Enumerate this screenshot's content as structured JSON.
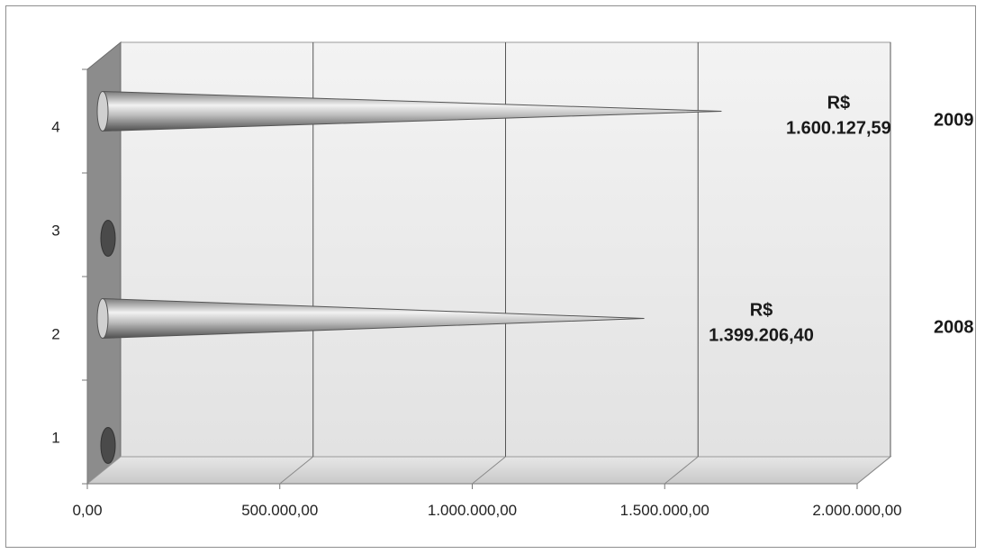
{
  "chart_data": {
    "type": "bar",
    "orientation": "horizontal",
    "style": "3d-cone",
    "categories": [
      "1",
      "2",
      "3",
      "4"
    ],
    "values": [
      null,
      1399206.4,
      null,
      1600127.59
    ],
    "data_labels": [
      null,
      {
        "currency": "R$",
        "amount": "1.399.206,40",
        "year": "2008"
      },
      null,
      {
        "currency": "R$",
        "amount": "1.600.127,59",
        "year": "2009"
      }
    ],
    "x_ticks": [
      "0,00",
      "500.000,00",
      "1.000.000,00",
      "1.500.000,00",
      "2.000.000,00"
    ],
    "xlim": [
      0,
      2000000
    ],
    "grid": true,
    "legend": "none",
    "colors": {
      "wall": "#ebebeb",
      "side_wall": "#8c8c8c",
      "floor": "#d9d9d9",
      "cone_light": "#f4f4f4",
      "cone_dark": "#5c5c5c",
      "gridline": "#555555"
    }
  }
}
